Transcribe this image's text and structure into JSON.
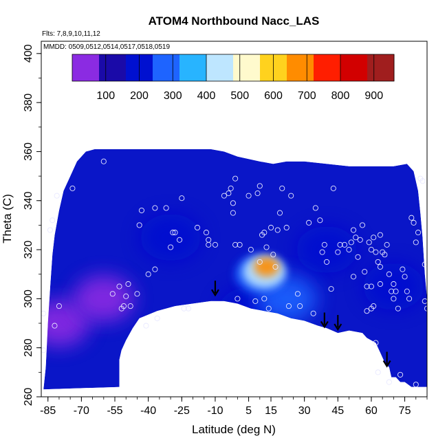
{
  "chart_data": {
    "type": "heatmap",
    "title": "ATOM4 Northbound Nacc_LAS",
    "annotations": [
      "Flts: 7,8,9,10,11,12",
      "MMDD: 0509,0512,0514,0517,0518,0519"
    ],
    "xlabel": "Latitude (deg N)",
    "ylabel": "Theta (C)",
    "xlim": [
      -88,
      85
    ],
    "ylim": [
      260,
      405
    ],
    "x_ticks": [
      -85,
      -70,
      -55,
      -40,
      -25,
      -10,
      5,
      15,
      30,
      45,
      60,
      75
    ],
    "y_ticks": [
      260,
      280,
      300,
      320,
      340,
      360,
      380,
      400
    ],
    "colorbar": {
      "range": [
        0,
        960
      ],
      "ticks": [
        100,
        200,
        300,
        400,
        500,
        600,
        700,
        800,
        900
      ],
      "colors": [
        "#8b2be2",
        "#1a0aa8",
        "#0010d0",
        "#1e64ff",
        "#28b4ff",
        "#bee6ff",
        "#fffacd",
        "#ffd21e",
        "#ff8c00",
        "#ff1e00",
        "#d20000",
        "#a01e1e"
      ]
    },
    "grid": false,
    "legend": "none",
    "data_region_outline": [
      [
        -87,
        263
      ],
      [
        -86,
        272
      ],
      [
        -85,
        290
      ],
      [
        -84,
        305
      ],
      [
        -83,
        318
      ],
      [
        -82,
        326
      ],
      [
        -80,
        336
      ],
      [
        -78,
        344
      ],
      [
        -75,
        350
      ],
      [
        -72,
        356
      ],
      [
        -68,
        360
      ],
      [
        -64,
        361
      ],
      [
        -52,
        361
      ],
      [
        -40,
        361
      ],
      [
        -28,
        361
      ],
      [
        -18,
        361
      ],
      [
        -12,
        361
      ],
      [
        -6,
        360
      ],
      [
        0,
        358
      ],
      [
        10,
        356
      ],
      [
        16,
        355
      ],
      [
        22,
        356
      ],
      [
        30,
        356
      ],
      [
        40,
        355
      ],
      [
        50,
        354
      ],
      [
        58,
        354
      ],
      [
        64,
        354
      ],
      [
        70,
        354
      ],
      [
        76,
        355
      ],
      [
        79,
        352
      ],
      [
        81,
        344
      ],
      [
        82,
        335
      ],
      [
        83,
        325
      ],
      [
        84,
        310
      ],
      [
        85,
        300
      ],
      [
        85,
        264
      ],
      [
        78,
        264
      ],
      [
        75,
        266
      ],
      [
        73,
        266
      ],
      [
        71,
        268
      ],
      [
        69,
        268
      ],
      [
        68,
        272
      ],
      [
        66,
        274
      ],
      [
        64,
        278
      ],
      [
        62,
        282
      ],
      [
        60,
        283
      ],
      [
        58,
        284
      ],
      [
        56,
        286
      ],
      [
        50,
        287
      ],
      [
        45,
        286
      ],
      [
        40,
        288
      ],
      [
        36,
        289
      ],
      [
        30,
        291
      ],
      [
        24,
        292
      ],
      [
        18,
        294
      ],
      [
        12,
        295
      ],
      [
        6,
        296
      ],
      [
        0,
        298
      ],
      [
        -6,
        299
      ],
      [
        -12,
        299
      ],
      [
        -20,
        298
      ],
      [
        -28,
        297
      ],
      [
        -36,
        295
      ],
      [
        -44,
        292
      ],
      [
        -47,
        288
      ],
      [
        -50,
        283
      ],
      [
        -52,
        279
      ],
      [
        -53,
        275
      ],
      [
        -53,
        264
      ]
    ],
    "field_blobs": [
      {
        "lat": 13,
        "theta": 313,
        "value": 650
      },
      {
        "lat": 12,
        "theta": 311,
        "value": 430
      },
      {
        "lat": 10,
        "theta": 310,
        "value": 300
      },
      {
        "lat": 22,
        "theta": 300,
        "value": 250
      },
      {
        "lat": -30,
        "theta": 325,
        "value": 170
      },
      {
        "lat": -80,
        "theta": 290,
        "value": 40
      },
      {
        "lat": -60,
        "theta": 300,
        "value": 50
      },
      {
        "lat": 5,
        "theta": 295,
        "value": 200
      },
      {
        "lat": 70,
        "theta": 305,
        "value": 180
      },
      {
        "lat": 40,
        "theta": 320,
        "value": 160
      }
    ],
    "points": [
      [
        -87,
        294
      ],
      [
        -87,
        279
      ],
      [
        -82,
        289
      ],
      [
        -80,
        297
      ],
      [
        -84,
        328
      ],
      [
        -83,
        332
      ],
      [
        -81,
        342
      ],
      [
        -74,
        345
      ],
      [
        -60,
        356
      ],
      [
        -56,
        302
      ],
      [
        -53,
        305
      ],
      [
        -52,
        296
      ],
      [
        -51,
        297
      ],
      [
        -50,
        301
      ],
      [
        -49,
        306
      ],
      [
        -48,
        297
      ],
      [
        -45,
        302
      ],
      [
        -44,
        330
      ],
      [
        -43,
        336
      ],
      [
        -41,
        289
      ],
      [
        -40,
        310
      ],
      [
        -37,
        337
      ],
      [
        -37,
        312
      ],
      [
        -36,
        292
      ],
      [
        -32,
        337
      ],
      [
        -30,
        321
      ],
      [
        -28,
        327
      ],
      [
        -26,
        324
      ],
      [
        -25,
        341
      ],
      [
        -24,
        296
      ],
      [
        -22,
        296
      ],
      [
        -18,
        329
      ],
      [
        -14,
        327
      ],
      [
        -13,
        324
      ],
      [
        -10,
        322
      ],
      [
        -6,
        342
      ],
      [
        -4,
        343
      ],
      [
        -3,
        345
      ],
      [
        -2,
        339
      ],
      [
        -2,
        335
      ],
      [
        -1,
        322
      ],
      [
        0,
        300
      ],
      [
        1,
        322
      ],
      [
        5,
        342
      ],
      [
        6,
        320
      ],
      [
        8,
        299
      ],
      [
        9,
        343
      ],
      [
        10,
        346
      ],
      [
        10,
        315
      ],
      [
        11,
        326
      ],
      [
        12,
        327
      ],
      [
        12,
        300
      ],
      [
        13,
        321
      ],
      [
        14,
        296
      ],
      [
        15,
        329
      ],
      [
        16,
        318
      ],
      [
        17,
        313
      ],
      [
        18,
        328
      ],
      [
        19,
        335
      ],
      [
        20,
        345
      ],
      [
        22,
        329
      ],
      [
        23,
        297
      ],
      [
        24,
        342
      ],
      [
        27,
        302
      ],
      [
        28,
        297
      ],
      [
        32,
        331
      ],
      [
        34,
        294
      ],
      [
        35,
        337
      ],
      [
        37,
        332
      ],
      [
        38,
        319
      ],
      [
        39,
        322
      ],
      [
        40,
        315
      ],
      [
        42,
        304
      ],
      [
        43,
        345
      ],
      [
        45,
        319
      ],
      [
        46,
        322
      ],
      [
        48,
        322
      ],
      [
        50,
        320
      ],
      [
        51,
        323
      ],
      [
        52,
        328
      ],
      [
        53,
        325
      ],
      [
        54,
        317
      ],
      [
        55,
        324
      ],
      [
        56,
        330
      ],
      [
        57,
        311
      ],
      [
        58,
        295
      ],
      [
        59,
        323
      ],
      [
        60,
        320
      ],
      [
        61,
        325
      ],
      [
        62,
        319
      ],
      [
        63,
        315
      ],
      [
        64,
        313
      ],
      [
        64,
        326
      ],
      [
        65,
        319
      ],
      [
        66,
        318
      ],
      [
        67,
        322
      ],
      [
        68,
        310
      ],
      [
        70,
        300
      ],
      [
        70,
        306
      ],
      [
        71,
        303
      ],
      [
        72,
        296
      ],
      [
        74,
        312
      ],
      [
        75,
        309
      ],
      [
        76,
        303
      ],
      [
        77,
        300
      ],
      [
        78,
        333
      ],
      [
        79,
        331
      ],
      [
        80,
        323
      ],
      [
        81,
        327
      ],
      [
        82,
        349
      ],
      [
        83,
        348
      ],
      [
        84,
        299
      ],
      [
        84,
        314
      ],
      [
        85,
        296
      ],
      [
        60,
        296
      ],
      [
        61,
        297
      ],
      [
        62,
        282
      ],
      [
        63,
        270
      ],
      [
        68,
        266
      ],
      [
        73,
        269
      ],
      [
        80,
        265
      ],
      [
        -1,
        349
      ],
      [
        -13,
        322
      ],
      [
        -29,
        327
      ],
      [
        60,
        305
      ],
      [
        52,
        309
      ],
      [
        58,
        305
      ],
      [
        64,
        306
      ],
      [
        69,
        303
      ]
    ],
    "arrows": [
      {
        "lat": -10,
        "theta": 304
      },
      {
        "lat": 39,
        "theta": 291
      },
      {
        "lat": 45,
        "theta": 290
      },
      {
        "lat": 67,
        "theta": 275
      }
    ]
  }
}
